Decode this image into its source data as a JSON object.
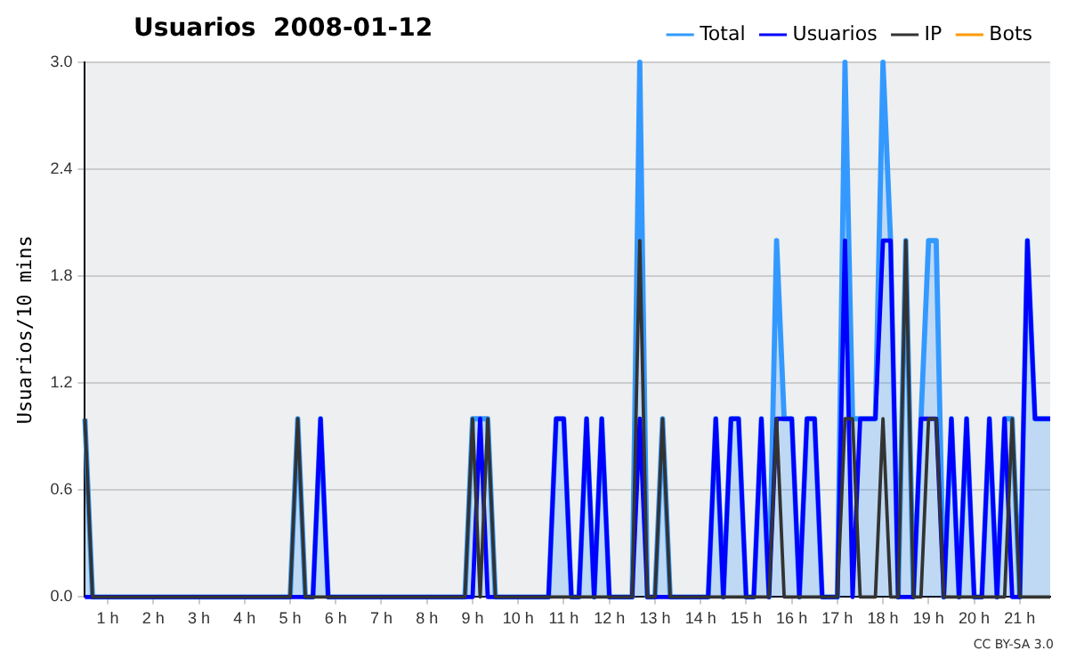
{
  "chart_data": {
    "type": "line",
    "title": "Usuarios  2008-01-12",
    "ylabel": "Usuarios/10 mins",
    "annotations": [
      "CC BY-SA 3.0"
    ],
    "x": [
      0.5,
      0.6667,
      0.8333,
      1,
      1.1667,
      1.3333,
      1.5,
      1.6667,
      1.8333,
      2,
      2.1667,
      2.3333,
      2.5,
      2.6667,
      2.8333,
      3,
      3.1667,
      3.3333,
      3.5,
      3.6667,
      3.8333,
      4,
      4.1667,
      4.3333,
      4.5,
      4.6667,
      4.8333,
      5,
      5.1667,
      5.3333,
      5.5,
      5.6667,
      5.8333,
      6,
      6.1667,
      6.3333,
      6.5,
      6.6667,
      6.8333,
      7,
      7.1667,
      7.3333,
      7.5,
      7.6667,
      7.8333,
      8,
      8.1667,
      8.3333,
      8.5,
      8.6667,
      8.8333,
      9,
      9.1667,
      9.3333,
      9.5,
      9.6667,
      9.8333,
      10,
      10.1667,
      10.3333,
      10.5,
      10.6667,
      10.8333,
      11,
      11.1667,
      11.3333,
      11.5,
      11.6667,
      11.8333,
      12,
      12.1667,
      12.3333,
      12.5,
      12.6667,
      12.8333,
      13,
      13.1667,
      13.3333,
      13.5,
      13.6667,
      13.8333,
      14,
      14.1667,
      14.3333,
      14.5,
      14.6667,
      14.8333,
      15,
      15.1667,
      15.3333,
      15.5,
      15.6667,
      15.8333,
      16,
      16.1667,
      16.3333,
      16.5,
      16.6667,
      16.8333,
      17,
      17.1667,
      17.3333,
      17.5,
      17.6667,
      17.8333,
      18,
      18.1667,
      18.3333,
      18.5,
      18.6667,
      18.8333,
      19,
      19.1667,
      19.3333,
      19.5,
      19.6667,
      19.8333,
      20,
      20.1667,
      20.3333,
      20.5,
      20.6667,
      20.8333,
      21,
      21.1667,
      21.3333,
      21.5,
      21.6667
    ],
    "series": [
      {
        "name": "Total",
        "type": "area",
        "color": "#3399ff",
        "values": [
          1,
          0,
          0,
          0,
          0,
          0,
          0,
          0,
          0,
          0,
          0,
          0,
          0,
          0,
          0,
          0,
          0,
          0,
          0,
          0,
          0,
          0,
          0,
          0,
          0,
          0,
          0,
          0,
          1,
          0,
          0,
          1,
          0,
          0,
          0,
          0,
          0,
          0,
          0,
          0,
          0,
          0,
          0,
          0,
          0,
          0,
          0,
          0,
          0,
          0,
          0,
          1,
          1,
          1,
          0,
          0,
          0,
          0,
          0,
          0,
          0,
          0,
          1,
          1,
          0,
          0,
          1,
          0,
          1,
          0,
          0,
          0,
          0,
          3,
          0,
          0,
          1,
          0,
          0,
          0,
          0,
          0,
          0,
          1,
          0,
          1,
          1,
          0,
          0,
          1,
          0,
          2,
          1,
          1,
          0,
          1,
          1,
          0,
          0,
          0,
          3,
          1,
          1,
          1,
          1,
          3,
          2,
          0,
          2,
          0,
          1,
          2,
          2,
          0,
          1,
          0,
          1,
          0,
          0,
          1,
          0,
          1,
          1,
          0,
          2,
          1,
          1,
          1
        ]
      },
      {
        "name": "Usuarios",
        "color": "#0000ff",
        "values": [
          0,
          0,
          0,
          0,
          0,
          0,
          0,
          0,
          0,
          0,
          0,
          0,
          0,
          0,
          0,
          0,
          0,
          0,
          0,
          0,
          0,
          0,
          0,
          0,
          0,
          0,
          0,
          0,
          0,
          0,
          0,
          1,
          0,
          0,
          0,
          0,
          0,
          0,
          0,
          0,
          0,
          0,
          0,
          0,
          0,
          0,
          0,
          0,
          0,
          0,
          0,
          0,
          1,
          0,
          0,
          0,
          0,
          0,
          0,
          0,
          0,
          0,
          1,
          1,
          0,
          0,
          1,
          0,
          1,
          0,
          0,
          0,
          0,
          1,
          0,
          0,
          0,
          0,
          0,
          0,
          0,
          0,
          0,
          1,
          0,
          1,
          1,
          0,
          0,
          1,
          0,
          1,
          1,
          1,
          0,
          1,
          1,
          0,
          0,
          0,
          2,
          0,
          1,
          1,
          1,
          2,
          2,
          0,
          0,
          0,
          1,
          1,
          1,
          0,
          1,
          0,
          1,
          0,
          0,
          1,
          0,
          1,
          0,
          0,
          2,
          1,
          1,
          1
        ]
      },
      {
        "name": "IP",
        "color": "#333333",
        "values": [
          1,
          0,
          0,
          0,
          0,
          0,
          0,
          0,
          0,
          0,
          0,
          0,
          0,
          0,
          0,
          0,
          0,
          0,
          0,
          0,
          0,
          0,
          0,
          0,
          0,
          0,
          0,
          0,
          1,
          0,
          0,
          0,
          0,
          0,
          0,
          0,
          0,
          0,
          0,
          0,
          0,
          0,
          0,
          0,
          0,
          0,
          0,
          0,
          0,
          0,
          0,
          1,
          0,
          1,
          0,
          0,
          0,
          0,
          0,
          0,
          0,
          0,
          0,
          0,
          0,
          0,
          0,
          0,
          0,
          0,
          0,
          0,
          0,
          2,
          0,
          0,
          1,
          0,
          0,
          0,
          0,
          0,
          0,
          0,
          0,
          0,
          0,
          0,
          0,
          0,
          0,
          1,
          0,
          0,
          0,
          0,
          0,
          0,
          0,
          0,
          1,
          1,
          0,
          0,
          0,
          1,
          0,
          0,
          2,
          0,
          0,
          1,
          1,
          0,
          0,
          0,
          0,
          0,
          0,
          0,
          0,
          0,
          1,
          0,
          0,
          0,
          0,
          0
        ]
      },
      {
        "name": "Bots",
        "color": "#ff9900",
        "values": [
          null,
          null,
          null,
          null,
          null,
          null,
          null,
          null,
          null,
          null,
          null,
          null,
          null,
          null,
          null,
          null,
          null,
          null,
          null,
          null,
          null,
          null,
          null,
          null,
          null,
          null,
          null,
          null,
          null,
          null,
          null,
          null,
          null,
          null,
          null,
          null,
          null,
          null,
          null,
          null,
          null,
          null,
          null,
          null,
          null,
          null,
          null,
          null,
          null,
          null,
          null,
          null,
          null,
          null,
          null,
          null,
          null,
          null,
          null,
          null,
          null,
          null,
          null,
          null,
          null,
          null,
          null,
          null,
          null,
          null,
          null,
          null,
          null,
          null,
          null,
          null,
          null,
          null,
          null,
          null,
          null,
          null,
          null,
          null,
          null,
          null,
          null,
          null,
          null,
          null,
          null,
          null,
          null,
          null,
          null,
          null,
          null,
          null,
          null,
          null,
          null,
          null,
          null,
          null,
          null,
          null,
          null,
          null,
          null,
          null,
          null,
          null,
          null,
          null,
          null,
          null,
          null,
          null,
          null,
          null,
          null,
          null,
          null,
          null,
          null,
          null,
          null,
          null
        ]
      }
    ],
    "xlim": [
      0.5,
      21.6667
    ],
    "xticks": [
      {
        "value": 1,
        "label": "1 h"
      },
      {
        "value": 2,
        "label": "2 h"
      },
      {
        "value": 3,
        "label": "3 h"
      },
      {
        "value": 4,
        "label": "4 h"
      },
      {
        "value": 5,
        "label": "5 h"
      },
      {
        "value": 6,
        "label": "6 h"
      },
      {
        "value": 7,
        "label": "7 h"
      },
      {
        "value": 8,
        "label": "8 h"
      },
      {
        "value": 9,
        "label": "9 h"
      },
      {
        "value": 10,
        "label": "10 h"
      },
      {
        "value": 11,
        "label": "11 h"
      },
      {
        "value": 12,
        "label": "12 h"
      },
      {
        "value": 13,
        "label": "13 h"
      },
      {
        "value": 14,
        "label": "14 h"
      },
      {
        "value": 15,
        "label": "15 h"
      },
      {
        "value": 16,
        "label": "16 h"
      },
      {
        "value": 17,
        "label": "17 h"
      },
      {
        "value": 18,
        "label": "18 h"
      },
      {
        "value": 19,
        "label": "19 h"
      },
      {
        "value": 20,
        "label": "20 h"
      },
      {
        "value": 21,
        "label": "21 h"
      }
    ],
    "ylim": [
      0,
      3
    ],
    "yticks": [
      {
        "value": 0,
        "label": "0.0"
      },
      0.6,
      1.2,
      1.8,
      2.4,
      {
        "value": 3,
        "label": "3.0"
      }
    ],
    "grid": "y",
    "legend": "top right",
    "marker": "none",
    "line_style": "solid"
  }
}
